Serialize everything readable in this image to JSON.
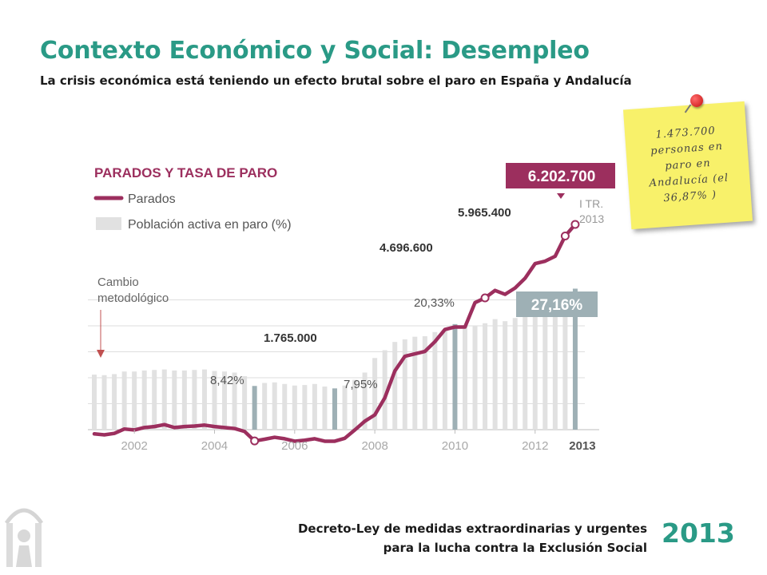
{
  "header": {
    "title": "Contexto Económico y Social: Desempleo",
    "subtitle": "La crisis económica está teniendo un efecto brutal sobre el paro en España y Andalucía"
  },
  "note": {
    "text": "1.473.700 personas en paro en Andalucía (el 36,87% )"
  },
  "footer": {
    "line1": "Decreto-Ley de medidas extraordinarias y urgentes",
    "line2": "para la lucha contra la Exclusión Social",
    "year": "2013"
  },
  "colors": {
    "accent": "#2a9a86",
    "line": "#9c2f5e",
    "bar": "#e1e1e1",
    "bar_highlight": "#9eb0b5"
  },
  "chart_data": {
    "type": "line",
    "title": "PARADOS Y TASA DE PARO",
    "legend": [
      {
        "label": "Parados",
        "kind": "line"
      },
      {
        "label": "Población activa en paro (%)",
        "kind": "bar"
      }
    ],
    "x_ticks": [
      "2002",
      "2004",
      "2006",
      "2008",
      "2010",
      "2012",
      "2013"
    ],
    "x_range": [
      2001.0,
      2013.4
    ],
    "series": [
      {
        "name": "Parados",
        "x": [
          2001.0,
          2001.25,
          2001.5,
          2001.75,
          2002.0,
          2002.25,
          2002.5,
          2002.75,
          2003.0,
          2003.25,
          2003.5,
          2003.75,
          2004.0,
          2004.25,
          2004.5,
          2004.75,
          2005.0,
          2005.25,
          2005.5,
          2005.75,
          2006.0,
          2006.25,
          2006.5,
          2006.75,
          2007.0,
          2007.25,
          2007.5,
          2007.75,
          2008.0,
          2008.25,
          2008.5,
          2008.75,
          2009.0,
          2009.25,
          2009.5,
          2009.75,
          2010.0,
          2010.25,
          2010.5,
          2010.75,
          2011.0,
          2011.25,
          2011.5,
          2011.75,
          2012.0,
          2012.25,
          2012.5,
          2012.75,
          2013.0
        ],
        "values": [
          1910000,
          1890000,
          1920000,
          2010000,
          1990000,
          2040000,
          2060000,
          2100000,
          2040000,
          2060000,
          2070000,
          2090000,
          2060000,
          2040000,
          2020000,
          1960000,
          1765000,
          1800000,
          1840000,
          1810000,
          1760000,
          1780000,
          1810000,
          1760000,
          1760000,
          1820000,
          1990000,
          2170000,
          2300000,
          2650000,
          3200000,
          3500000,
          3550000,
          3600000,
          3800000,
          4050000,
          4100000,
          4100000,
          4600000,
          4696600,
          4850000,
          4770000,
          4900000,
          5100000,
          5400000,
          5450000,
          5550000,
          5965400,
          6202700
        ]
      },
      {
        "name": "Población activa en paro (%)",
        "x": [
          2001.0,
          2001.25,
          2001.5,
          2001.75,
          2002.0,
          2002.25,
          2002.5,
          2002.75,
          2003.0,
          2003.25,
          2003.5,
          2003.75,
          2004.0,
          2004.25,
          2004.5,
          2004.75,
          2005.0,
          2005.25,
          2005.5,
          2005.75,
          2006.0,
          2006.25,
          2006.5,
          2006.75,
          2007.0,
          2007.25,
          2007.5,
          2007.75,
          2008.0,
          2008.25,
          2008.5,
          2008.75,
          2009.0,
          2009.25,
          2009.5,
          2009.75,
          2010.0,
          2010.25,
          2010.5,
          2010.75,
          2011.0,
          2011.25,
          2011.5,
          2011.75,
          2012.0,
          2012.25,
          2012.5,
          2012.75,
          2013.0
        ],
        "values": [
          10.6,
          10.5,
          10.7,
          11.2,
          11.2,
          11.4,
          11.5,
          11.6,
          11.4,
          11.4,
          11.5,
          11.6,
          11.3,
          11.2,
          11.0,
          10.3,
          8.42,
          9.0,
          9.1,
          8.8,
          8.5,
          8.6,
          8.8,
          8.3,
          7.95,
          8.5,
          9.6,
          11.0,
          13.8,
          15.3,
          16.9,
          17.4,
          17.9,
          18.0,
          18.8,
          19.4,
          20.33,
          20.0,
          20.0,
          20.5,
          21.3,
          20.9,
          21.5,
          22.8,
          24.4,
          24.6,
          25.0,
          26.0,
          27.16
        ],
        "highlight_x": [
          2005.0,
          2007.0,
          2010.0,
          2013.0
        ]
      }
    ],
    "annotations": [
      {
        "text": "Cambio metodológico",
        "x": 2001.0
      },
      {
        "text": "1.765.000",
        "x": 2005.0,
        "series": "Parados"
      },
      {
        "text": "8,42%",
        "x": 2005.0,
        "series": "Población activa en paro (%)"
      },
      {
        "text": "7,95%",
        "x": 2007.0,
        "series": "Población activa en paro (%)"
      },
      {
        "text": "4.696.600",
        "x": 2010.75,
        "series": "Parados"
      },
      {
        "text": "20,33%",
        "x": 2010.0,
        "series": "Población activa en paro (%)"
      },
      {
        "text": "5.965.400",
        "x": 2012.75,
        "series": "Parados"
      },
      {
        "text": "6.202.700",
        "x": 2013.0,
        "series": "Parados"
      },
      {
        "text": "27,16%",
        "x": 2013.0,
        "series": "Población activa en paro (%)"
      },
      {
        "text": "I TR.",
        "x": 2013.0
      },
      {
        "text": "2013",
        "x": 2013.0
      }
    ]
  }
}
